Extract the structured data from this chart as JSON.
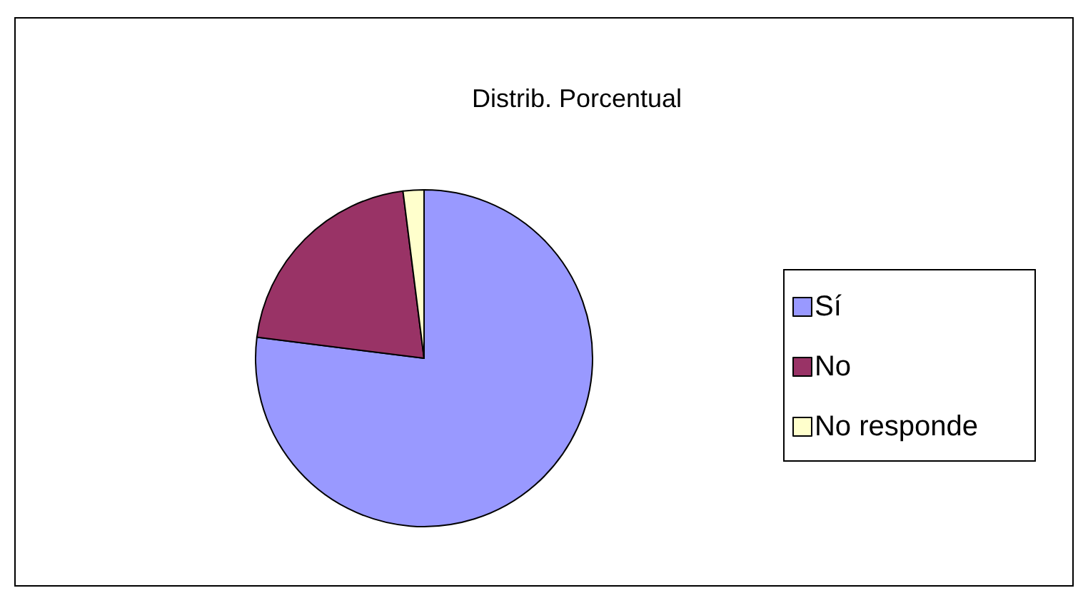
{
  "chart_data": {
    "type": "pie",
    "title": "Distrib. Porcentual",
    "categories": [
      "Sí",
      "No",
      "No responde"
    ],
    "values": [
      77,
      21,
      2
    ],
    "colors": [
      "#9999ff",
      "#993366",
      "#ffffcc"
    ],
    "legend": "right"
  }
}
